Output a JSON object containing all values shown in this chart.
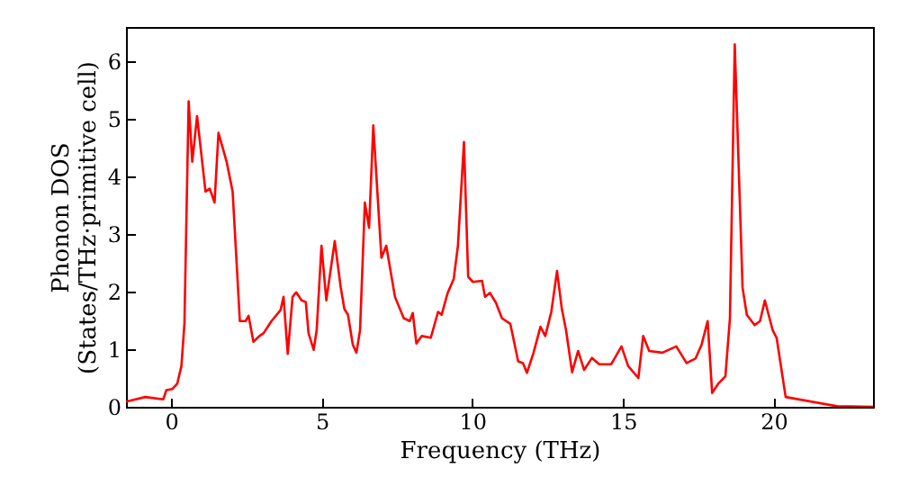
{
  "chart_data": {
    "type": "line",
    "xlabel": "Frequency (THz)",
    "ylabel": "Phonon DOS\n(States/THz·primitive cell)",
    "xlim": [
      -1.5,
      23.3
    ],
    "ylim": [
      0,
      6.6
    ],
    "xticks": [
      0,
      5,
      10,
      15,
      20
    ],
    "yticks": [
      0,
      1,
      2,
      3,
      4,
      5,
      6
    ],
    "grid": false,
    "series": [
      {
        "color": "#ff0000",
        "x": [
          -1.5,
          -0.86,
          -0.26,
          -0.16,
          0.04,
          0.2,
          0.34,
          0.44,
          0.58,
          0.7,
          0.86,
          1.14,
          1.28,
          1.44,
          1.57,
          1.84,
          2.04,
          2.28,
          2.47,
          2.57,
          2.73,
          2.93,
          3.07,
          3.33,
          3.63,
          3.73,
          3.87,
          4.03,
          4.15,
          4.33,
          4.47,
          4.56,
          4.73,
          4.83,
          4.99,
          5.15,
          5.43,
          5.63,
          5.75,
          5.87,
          6.03,
          6.15,
          6.27,
          6.43,
          6.57,
          6.71,
          6.98,
          7.14,
          7.43,
          7.72,
          7.92,
          8.02,
          8.14,
          8.32,
          8.62,
          8.86,
          8.98,
          9.18,
          9.38,
          9.52,
          9.72,
          9.86,
          10.02,
          10.32,
          10.42,
          10.58,
          10.78,
          10.98,
          11.26,
          11.52,
          11.68,
          11.81,
          12.02,
          12.26,
          12.42,
          12.62,
          12.81,
          12.97,
          13.11,
          13.31,
          13.51,
          13.71,
          13.97,
          14.21,
          14.61,
          14.95,
          15.17,
          15.51,
          15.67,
          15.87,
          16.31,
          16.77,
          17.11,
          17.41,
          17.61,
          17.81,
          17.96,
          18.16,
          18.4,
          18.55,
          18.71,
          18.97,
          19.11,
          19.37,
          19.55,
          19.71,
          19.97,
          20.1,
          20.4,
          22.1,
          23.3
        ],
        "values": [
          0.09,
          0.17,
          0.13,
          0.29,
          0.31,
          0.4,
          0.71,
          1.44,
          5.31,
          4.26,
          5.05,
          3.74,
          3.79,
          3.55,
          4.76,
          4.26,
          3.74,
          1.49,
          1.49,
          1.58,
          1.13,
          1.23,
          1.28,
          1.49,
          1.68,
          1.91,
          0.92,
          1.91,
          1.99,
          1.85,
          1.82,
          1.28,
          0.99,
          1.33,
          2.8,
          1.85,
          2.88,
          2.07,
          1.7,
          1.6,
          1.08,
          0.94,
          1.33,
          3.55,
          3.11,
          4.89,
          2.59,
          2.8,
          1.91,
          1.54,
          1.49,
          1.63,
          1.1,
          1.23,
          1.2,
          1.65,
          1.6,
          1.98,
          2.22,
          2.8,
          4.6,
          2.26,
          2.17,
          2.19,
          1.91,
          1.98,
          1.81,
          1.54,
          1.44,
          0.79,
          0.76,
          0.59,
          0.92,
          1.39,
          1.23,
          1.65,
          2.36,
          1.7,
          1.33,
          0.6,
          0.97,
          0.64,
          0.85,
          0.74,
          0.74,
          1.05,
          0.71,
          0.5,
          1.23,
          0.97,
          0.94,
          1.05,
          0.76,
          0.84,
          1.08,
          1.49,
          0.24,
          0.4,
          0.53,
          1.54,
          6.3,
          2.07,
          1.6,
          1.42,
          1.49,
          1.85,
          1.33,
          1.2,
          0.17,
          0.01,
          0
        ]
      }
    ]
  }
}
